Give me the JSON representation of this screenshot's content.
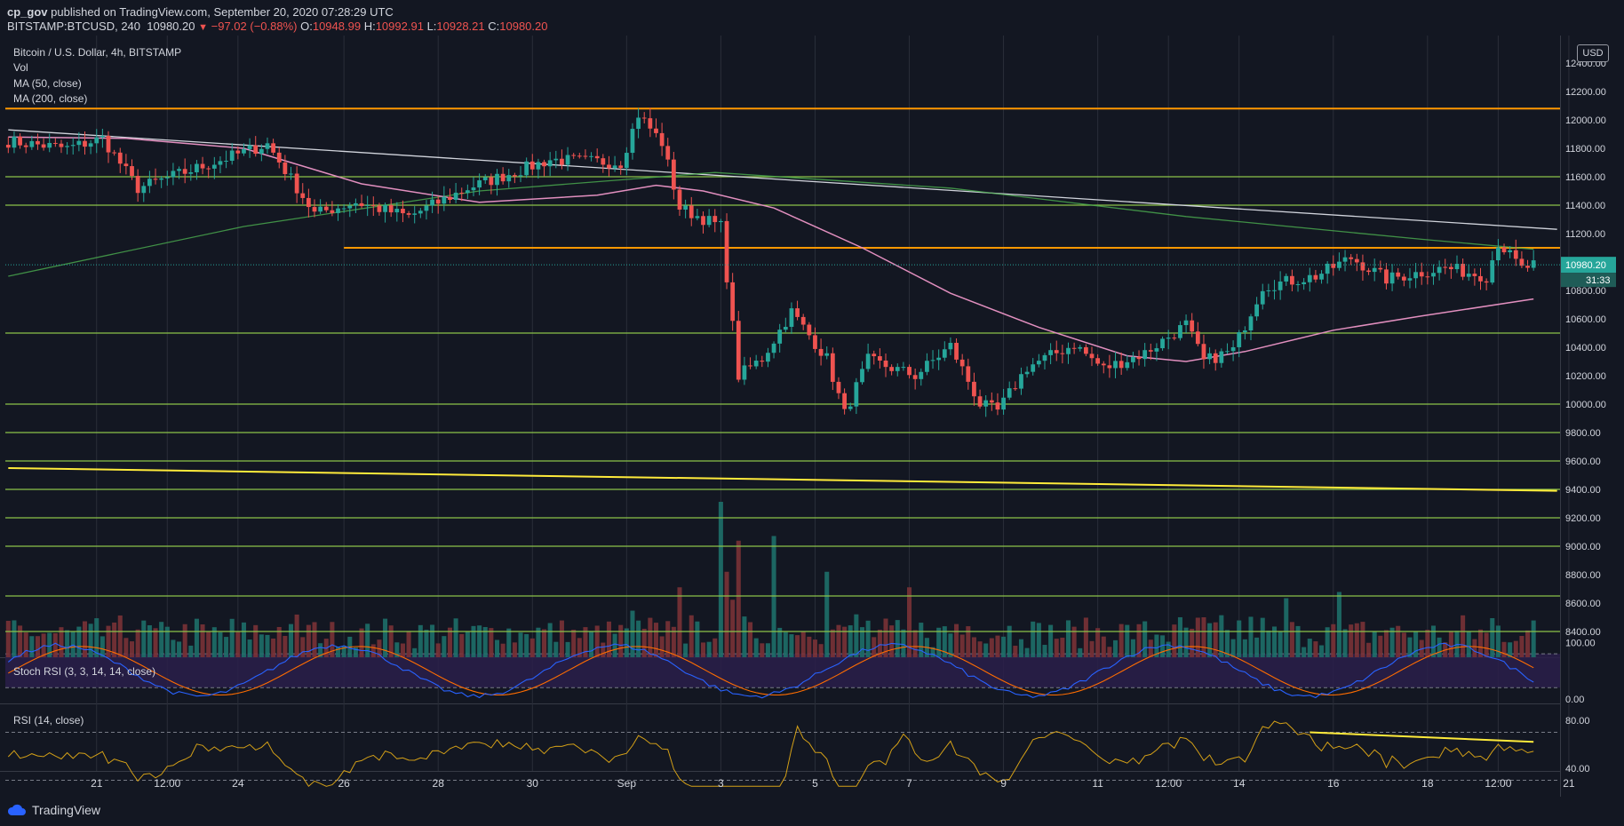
{
  "header": {
    "author": "cp_gov",
    "published_text": "published on TradingView.com, September 20, 2020 07:28:29 UTC",
    "symbol": "BITSTAMP:BTCUSD, 240",
    "last": "10980.20",
    "change": "−97.02 (−0.88%)",
    "o_label": "O:",
    "o": "10948.99",
    "h_label": "H:",
    "h": "10992.91",
    "l_label": "L:",
    "l": "10928.21",
    "c_label": "C:",
    "c": "10980.20"
  },
  "legend": {
    "title": "Bitcoin / U.S. Dollar, 4h, BITSTAMP",
    "vol": "Vol",
    "ma50": "MA (50, close)",
    "ma200": "MA (200, close)",
    "stoch": "Stoch RSI (3, 3, 14, 14, close)",
    "rsi": "RSI (14, close)"
  },
  "price_axis": {
    "currency": "USD",
    "current_price": "10980.20",
    "countdown": "31:33"
  },
  "footer": {
    "brand": "TradingView"
  },
  "colors": {
    "background": "#131722",
    "up": "#26a69a",
    "down": "#ef5350",
    "ma50": "#e28fbf",
    "ma200": "#4caf50",
    "orange": "#ff9800",
    "yellow": "#ffeb3b",
    "trend": "#d1d4dc",
    "stoch_k": "#2962ff",
    "stoch_d": "#ff6d00",
    "rsi": "#d4a017",
    "stoch_bg": "#2a1f4a"
  },
  "chart_data": [
    {
      "type": "candlestick",
      "title": "Bitcoin / U.S. Dollar, 4h, BITSTAMP",
      "ylabel": "USD",
      "ylim": [
        8200,
        12500
      ],
      "y_ticks": [
        12400,
        12200,
        12000,
        11800,
        11600,
        11400,
        11200,
        10800,
        10600,
        10400,
        10200,
        10000,
        9800,
        9600,
        9400,
        9200,
        9000,
        8800,
        8600,
        8400
      ],
      "x_ticks": [
        {
          "label": "21",
          "bar": 15
        },
        {
          "label": "12:00",
          "bar": 27
        },
        {
          "label": "24",
          "bar": 39
        },
        {
          "label": "26",
          "bar": 57
        },
        {
          "label": "28",
          "bar": 73
        },
        {
          "label": "30",
          "bar": 89
        },
        {
          "label": "Sep",
          "bar": 105
        },
        {
          "label": "3",
          "bar": 121
        },
        {
          "label": "5",
          "bar": 137
        },
        {
          "label": "7",
          "bar": 153
        },
        {
          "label": "9",
          "bar": 169
        },
        {
          "label": "11",
          "bar": 185
        },
        {
          "label": "12:00",
          "bar": 197
        },
        {
          "label": "14",
          "bar": 209
        },
        {
          "label": "16",
          "bar": 225
        },
        {
          "label": "18",
          "bar": 241
        },
        {
          "label": "12:00",
          "bar": 253
        },
        {
          "label": "21",
          "bar": 265
        }
      ],
      "anchors": [
        {
          "bar": 0,
          "close": 11850
        },
        {
          "bar": 10,
          "close": 11800
        },
        {
          "bar": 16,
          "close": 11870
        },
        {
          "bar": 22,
          "close": 11520
        },
        {
          "bar": 32,
          "close": 11660
        },
        {
          "bar": 44,
          "close": 11830
        },
        {
          "bar": 52,
          "close": 11340
        },
        {
          "bar": 59,
          "close": 11420
        },
        {
          "bar": 68,
          "close": 11320
        },
        {
          "bar": 78,
          "close": 11520
        },
        {
          "bar": 92,
          "close": 11720
        },
        {
          "bar": 104,
          "close": 11700
        },
        {
          "bar": 107,
          "close": 12040
        },
        {
          "bar": 111,
          "close": 11840
        },
        {
          "bar": 114,
          "close": 11380
        },
        {
          "bar": 121,
          "close": 11250
        },
        {
          "bar": 124,
          "close": 10200
        },
        {
          "bar": 128,
          "close": 10320
        },
        {
          "bar": 133,
          "close": 10650
        },
        {
          "bar": 139,
          "close": 10320
        },
        {
          "bar": 142,
          "close": 9930
        },
        {
          "bar": 146,
          "close": 10310
        },
        {
          "bar": 154,
          "close": 10200
        },
        {
          "bar": 160,
          "close": 10410
        },
        {
          "bar": 165,
          "close": 10000
        },
        {
          "bar": 168,
          "close": 9950
        },
        {
          "bar": 173,
          "close": 10260
        },
        {
          "bar": 181,
          "close": 10420
        },
        {
          "bar": 186,
          "close": 10250
        },
        {
          "bar": 193,
          "close": 10360
        },
        {
          "bar": 200,
          "close": 10560
        },
        {
          "bar": 203,
          "close": 10300
        },
        {
          "bar": 208,
          "close": 10380
        },
        {
          "bar": 213,
          "close": 10830
        },
        {
          "bar": 222,
          "close": 10900
        },
        {
          "bar": 228,
          "close": 11030
        },
        {
          "bar": 234,
          "close": 10880
        },
        {
          "bar": 244,
          "close": 10960
        },
        {
          "bar": 251,
          "close": 10900
        },
        {
          "bar": 253,
          "close": 11140
        },
        {
          "bar": 257,
          "close": 10950
        },
        {
          "bar": 259,
          "close": 10980
        }
      ],
      "ma50": [
        {
          "bar": 0,
          "value": 11880
        },
        {
          "bar": 20,
          "value": 11870
        },
        {
          "bar": 40,
          "value": 11800
        },
        {
          "bar": 60,
          "value": 11550
        },
        {
          "bar": 80,
          "value": 11420
        },
        {
          "bar": 100,
          "value": 11470
        },
        {
          "bar": 110,
          "value": 11540
        },
        {
          "bar": 118,
          "value": 11500
        },
        {
          "bar": 130,
          "value": 11380
        },
        {
          "bar": 145,
          "value": 11100
        },
        {
          "bar": 160,
          "value": 10780
        },
        {
          "bar": 175,
          "value": 10540
        },
        {
          "bar": 190,
          "value": 10340
        },
        {
          "bar": 200,
          "value": 10300
        },
        {
          "bar": 210,
          "value": 10370
        },
        {
          "bar": 225,
          "value": 10520
        },
        {
          "bar": 240,
          "value": 10620
        },
        {
          "bar": 259,
          "value": 10740
        }
      ],
      "ma200": [
        {
          "bar": 0,
          "value": 10900
        },
        {
          "bar": 40,
          "value": 11250
        },
        {
          "bar": 80,
          "value": 11500
        },
        {
          "bar": 120,
          "value": 11630
        },
        {
          "bar": 160,
          "value": 11520
        },
        {
          "bar": 200,
          "value": 11320
        },
        {
          "bar": 240,
          "value": 11160
        },
        {
          "bar": 259,
          "value": 11090
        }
      ],
      "horizontal_levels": [
        {
          "value": 12080,
          "style": "orange"
        },
        {
          "value": 11100,
          "style": "orange"
        },
        {
          "value": 11600,
          "style": "green"
        },
        {
          "value": 11400,
          "style": "green"
        },
        {
          "value": 10500,
          "style": "green"
        },
        {
          "value": 10000,
          "style": "green"
        },
        {
          "value": 9800,
          "style": "green"
        },
        {
          "value": 9600,
          "style": "green"
        },
        {
          "value": 9400,
          "style": "green"
        },
        {
          "value": 9200,
          "style": "green"
        },
        {
          "value": 9000,
          "style": "green"
        },
        {
          "value": 8650,
          "style": "green"
        },
        {
          "value": 8400,
          "style": "green"
        }
      ],
      "trendlines": [
        {
          "from": [
            0,
            11930
          ],
          "to": [
            263,
            11230
          ],
          "style": "trend"
        },
        {
          "from": [
            0,
            9550
          ],
          "to": [
            263,
            9390
          ],
          "style": "yellow"
        }
      ],
      "volume_spikes": [
        {
          "bar": 114,
          "level": 0.45
        },
        {
          "bar": 121,
          "level": 1.0
        },
        {
          "bar": 122,
          "level": 0.55
        },
        {
          "bar": 124,
          "level": 0.75
        },
        {
          "bar": 130,
          "level": 0.78
        },
        {
          "bar": 139,
          "level": 0.55
        },
        {
          "bar": 153,
          "level": 0.45
        },
        {
          "bar": 217,
          "level": 0.38
        },
        {
          "bar": 226,
          "level": 0.42
        }
      ]
    },
    {
      "type": "line",
      "title": "Stoch RSI (3, 3, 14, 14, close)",
      "ylim": [
        0,
        100
      ],
      "y_ticks": [
        100.0,
        0.0
      ],
      "bands": [
        80,
        20
      ],
      "series": [
        {
          "name": "K"
        },
        {
          "name": "D"
        }
      ]
    },
    {
      "type": "line",
      "title": "RSI (14, close)",
      "ylim": [
        25,
        90
      ],
      "y_ticks": [
        80.0,
        40.0
      ],
      "bands": [
        70,
        30
      ],
      "series": [
        {
          "name": "RSI"
        }
      ],
      "divergence_line": {
        "from": [
          221,
          70
        ],
        "to": [
          259,
          62
        ]
      }
    }
  ]
}
